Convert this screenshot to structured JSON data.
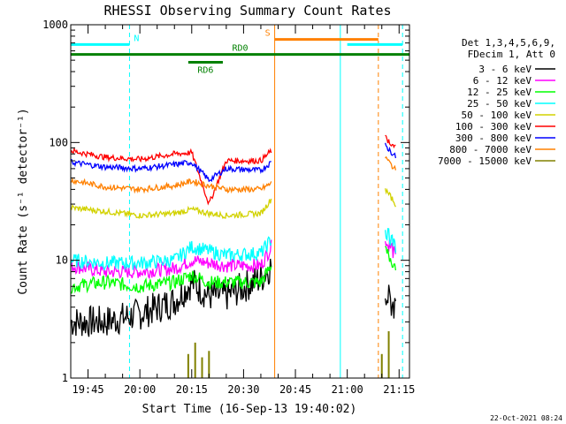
{
  "chart_data": {
    "type": "line",
    "title": "RHESSI Observing Summary Count Rates",
    "xlabel": "Start Time (16-Sep-13 19:40:02)",
    "ylabel": "Count Rate (s⁻¹ detector⁻¹)",
    "y_scale": "log",
    "ylim": [
      1,
      1000
    ],
    "xlim": [
      "19:40",
      "21:18"
    ],
    "x_ticks": [
      "19:45",
      "20:00",
      "20:15",
      "20:30",
      "20:45",
      "21:00",
      "21:15"
    ],
    "y_ticks": [
      "1",
      "10",
      "100",
      "1000"
    ],
    "timestamp": "22-Oct-2021 08:24",
    "legend_header": [
      "Det 1,3,4,5,6,9,",
      "FDecim 1, Att 0"
    ],
    "legend_position": "right",
    "series": [
      {
        "name": "3 - 6 keV",
        "color": "#000000",
        "x": [
          "19:40",
          "19:50",
          "20:00",
          "20:10",
          "20:15",
          "20:20",
          "20:25",
          "20:35",
          "20:38"
        ],
        "values": [
          3,
          3,
          3.5,
          4.5,
          6.5,
          5,
          5,
          7,
          9
        ]
      },
      {
        "name": "6 - 12 keV",
        "color": "#ff00ff",
        "x": [
          "19:40",
          "19:50",
          "20:00",
          "20:10",
          "20:15",
          "20:20",
          "20:25",
          "20:35",
          "20:38"
        ],
        "values": [
          9,
          8,
          8,
          8.5,
          10,
          9.5,
          9,
          9,
          13
        ]
      },
      {
        "name": "12 - 25 keV",
        "color": "#00ff00",
        "x": [
          "19:40",
          "19:50",
          "20:00",
          "20:10",
          "20:15",
          "20:20",
          "20:25",
          "20:35",
          "20:38"
        ],
        "values": [
          6,
          6.5,
          6,
          6.5,
          7.5,
          6.5,
          6.5,
          6.5,
          9
        ]
      },
      {
        "name": "25 - 50 keV",
        "color": "#00ffff",
        "x": [
          "19:40",
          "19:50",
          "20:00",
          "20:10",
          "20:15",
          "20:20",
          "20:25",
          "20:35",
          "20:38"
        ],
        "values": [
          10,
          9.5,
          9.5,
          10,
          13,
          12,
          11,
          11.5,
          15
        ]
      },
      {
        "name": "50 - 100 keV",
        "color": "#d2d200",
        "x": [
          "19:40",
          "19:50",
          "20:00",
          "20:10",
          "20:15",
          "20:20",
          "20:25",
          "20:35",
          "20:38"
        ],
        "values": [
          28,
          26,
          24,
          25,
          27,
          25,
          24,
          25,
          33
        ]
      },
      {
        "name": "100 - 300 keV",
        "color": "#ff0000",
        "x": [
          "19:40",
          "19:50",
          "20:00",
          "20:10",
          "20:15",
          "20:20",
          "20:25",
          "20:35",
          "20:38"
        ],
        "values": [
          85,
          75,
          72,
          80,
          82,
          30,
          70,
          70,
          85
        ]
      },
      {
        "name": "300 - 800 keV",
        "color": "#0000ff",
        "x": [
          "19:40",
          "19:50",
          "20:00",
          "20:10",
          "20:15",
          "20:20",
          "20:25",
          "20:35",
          "20:38"
        ],
        "values": [
          68,
          62,
          60,
          65,
          68,
          48,
          60,
          58,
          68
        ]
      },
      {
        "name": "800 - 7000 keV",
        "color": "#ff8000",
        "x": [
          "19:40",
          "19:50",
          "20:00",
          "20:10",
          "20:15",
          "20:20",
          "20:25",
          "20:35",
          "20:38"
        ],
        "values": [
          48,
          42,
          40,
          43,
          47,
          43,
          40,
          40,
          45
        ]
      },
      {
        "name": "7000 - 15000 keV",
        "color": "#808000",
        "x": [
          "20:14",
          "20:16",
          "20:18",
          "20:20",
          "21:10",
          "21:12"
        ],
        "values": [
          1.6,
          2.0,
          1.5,
          1.7,
          1.6,
          2.5
        ]
      }
    ],
    "series_after_gap": [
      {
        "name": "3 - 6 keV",
        "x": [
          "21:11",
          "21:14"
        ],
        "values": [
          5,
          4
        ]
      },
      {
        "name": "6 - 12 keV",
        "x": [
          "21:11",
          "21:14"
        ],
        "values": [
          15,
          11
        ]
      },
      {
        "name": "12 - 25 keV",
        "x": [
          "21:11",
          "21:14"
        ],
        "values": [
          12,
          9
        ]
      },
      {
        "name": "25 - 50 keV",
        "x": [
          "21:11",
          "21:14"
        ],
        "values": [
          18,
          13
        ]
      },
      {
        "name": "50 - 100 keV",
        "x": [
          "21:11",
          "21:14"
        ],
        "values": [
          40,
          30
        ]
      },
      {
        "name": "100 - 300 keV",
        "x": [
          "21:11",
          "21:14"
        ],
        "values": [
          110,
          90
        ]
      },
      {
        "name": "300 - 800 keV",
        "x": [
          "21:11",
          "21:14"
        ],
        "values": [
          95,
          75
        ]
      },
      {
        "name": "800 - 7000 keV",
        "x": [
          "21:11",
          "21:14"
        ],
        "values": [
          75,
          58
        ]
      }
    ],
    "annotations": [
      {
        "text": "N",
        "color": "#00ffff",
        "x_start": "19:40",
        "x_end": "19:57",
        "level": 680
      },
      {
        "text": "S",
        "color": "#ff8000",
        "x_start": "20:39",
        "x_end": "21:09",
        "level": 750
      },
      {
        "text": "RD0",
        "color": "#008000",
        "x_start": "19:40",
        "x_end": "21:18",
        "level": 560
      },
      {
        "text": "RD6",
        "color": "#008000",
        "x_start": "20:14",
        "x_end": "20:24",
        "level": 480
      }
    ],
    "cyan_segment_after": {
      "x_start": "21:00",
      "x_end": "21:16",
      "level": 680
    },
    "vertical_lines": [
      {
        "x": "19:40",
        "color": "#00ffff",
        "style": "solid"
      },
      {
        "x": "19:57",
        "color": "#00ffff",
        "style": "dashed"
      },
      {
        "x": "20:39",
        "color": "#ff8000",
        "style": "solid"
      },
      {
        "x": "20:58",
        "color": "#00ffff",
        "style": "solid"
      },
      {
        "x": "21:09",
        "color": "#ff8000",
        "style": "dashed"
      },
      {
        "x": "21:16",
        "color": "#00ffff",
        "style": "dashed"
      }
    ],
    "grid": false
  }
}
